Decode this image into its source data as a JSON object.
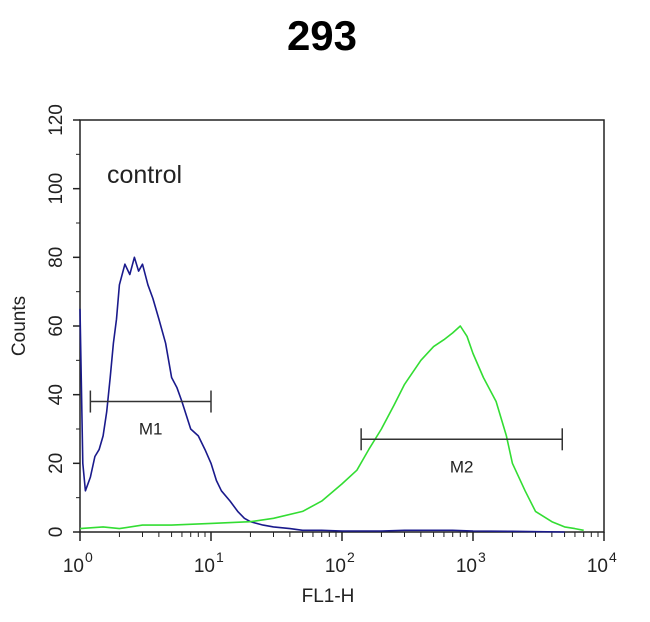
{
  "chart_data": {
    "type": "line",
    "title": "293",
    "xlabel": "FL1-H",
    "ylabel": "Counts",
    "xscale": "log",
    "xlim": [
      1,
      10000
    ],
    "ylim": [
      0,
      120
    ],
    "x_ticks": [
      {
        "base": "10",
        "exp": "0"
      },
      {
        "base": "10",
        "exp": "1"
      },
      {
        "base": "10",
        "exp": "2"
      },
      {
        "base": "10",
        "exp": "3"
      },
      {
        "base": "10",
        "exp": "4"
      }
    ],
    "y_ticks": [
      "0",
      "20",
      "40",
      "60",
      "80",
      "100",
      "120"
    ],
    "annotation": "control",
    "series": [
      {
        "color": "#1a1a8c",
        "x": [
          1,
          1.05,
          1.1,
          1.2,
          1.3,
          1.4,
          1.5,
          1.6,
          1.7,
          1.8,
          1.9,
          2.0,
          2.2,
          2.4,
          2.6,
          2.8,
          3.0,
          3.3,
          3.6,
          4.0,
          4.5,
          5.0,
          5.5,
          6.0,
          7.0,
          8.0,
          9.0,
          10,
          11,
          12,
          14,
          16,
          18,
          20,
          25,
          30,
          40,
          50,
          70,
          100,
          150,
          200,
          300,
          500,
          700,
          1000,
          2000,
          5000
        ],
        "y": [
          65,
          20,
          12,
          16,
          22,
          24,
          28,
          35,
          45,
          55,
          62,
          72,
          78,
          75,
          80,
          76,
          78,
          72,
          68,
          62,
          55,
          45,
          42,
          38,
          30,
          28,
          24,
          20,
          15,
          12,
          9,
          6,
          4,
          3,
          2,
          1.5,
          1,
          0.5,
          0.5,
          0.3,
          0.3,
          0.3,
          0.5,
          0.5,
          0.5,
          0.3,
          0.2,
          0
        ]
      },
      {
        "color": "#33dd33",
        "x": [
          1,
          1.5,
          2,
          3,
          5,
          10,
          20,
          30,
          50,
          70,
          100,
          130,
          160,
          200,
          250,
          300,
          400,
          500,
          600,
          700,
          800,
          900,
          1000,
          1200,
          1500,
          1800,
          2000,
          2500,
          3000,
          4000,
          5000,
          6000,
          7000
        ],
        "y": [
          1,
          1.5,
          1,
          2,
          2,
          2.5,
          3,
          4,
          6,
          9,
          14,
          18,
          24,
          30,
          37,
          43,
          50,
          54,
          56,
          58,
          60,
          57,
          52,
          45,
          38,
          28,
          20,
          12,
          6,
          3,
          1.5,
          1,
          0.5
        ]
      }
    ],
    "markers": [
      {
        "label": "M1",
        "x_start": 1.2,
        "x_end": 10,
        "y": 38
      },
      {
        "label": "M2",
        "x_start": 140,
        "x_end": 4800,
        "y": 27
      }
    ]
  }
}
